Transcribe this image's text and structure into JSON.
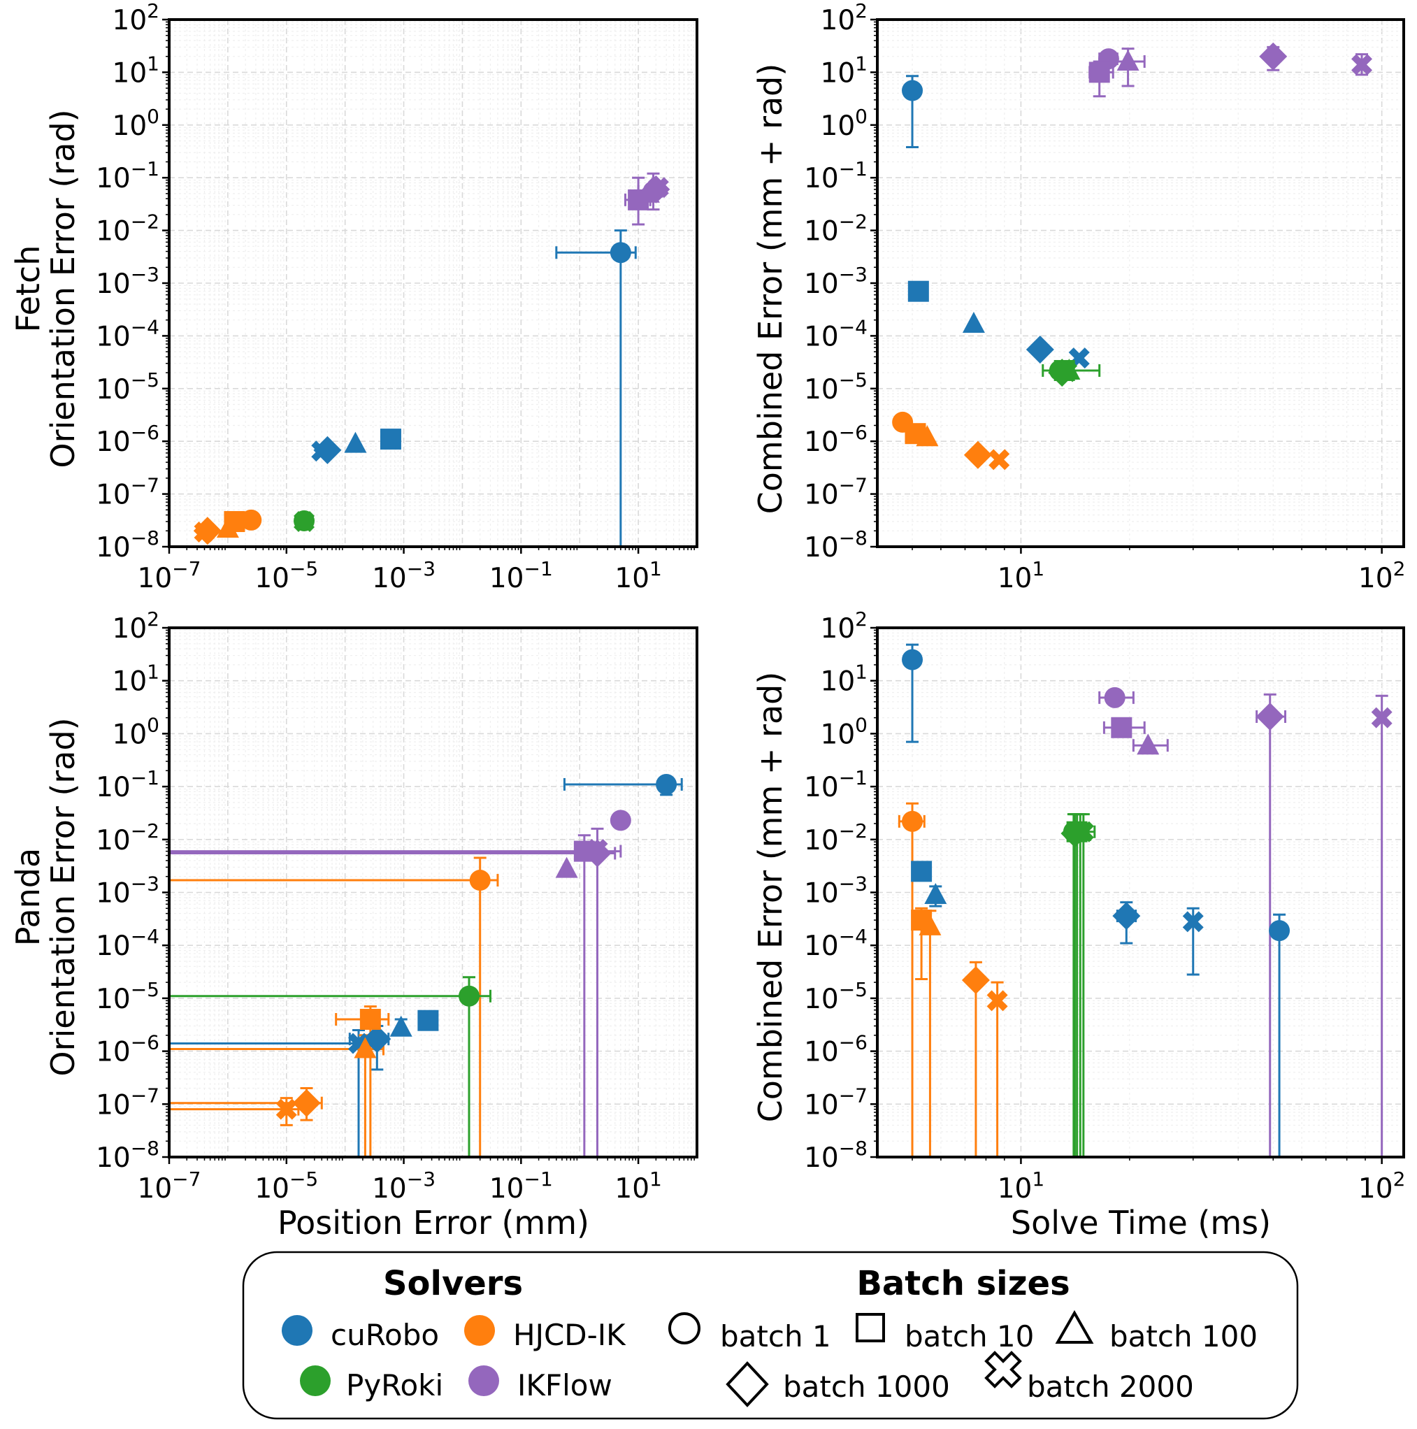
{
  "colors": {
    "cuRobo": "#1f77b4",
    "HJCD-IK": "#ff7f0e",
    "PyRoki": "#2ca02c",
    "IKFlow": "#9467bd"
  },
  "labels": {
    "fetch_ylabel_1": "Fetch",
    "fetch_ylabel_2": "Orientation Error (rad)",
    "panda_ylabel_1": "Panda",
    "panda_ylabel_2": "Orientation Error (rad)",
    "right_ylabel": "Combined Error (mm + rad)",
    "bottom_left_xlabel": "Position Error (mm)",
    "bottom_right_xlabel": "Solve Time (ms)"
  },
  "legend": {
    "solvers_title": "Solvers",
    "batch_title": "Batch sizes",
    "solvers": [
      {
        "name": "cuRobo",
        "color": "#1f77b4"
      },
      {
        "name": "HJCD-IK",
        "color": "#ff7f0e"
      },
      {
        "name": "PyRoki",
        "color": "#2ca02c"
      },
      {
        "name": "IKFlow",
        "color": "#9467bd"
      }
    ],
    "batches": [
      {
        "label": "batch 1",
        "marker": "circle"
      },
      {
        "label": "batch 10",
        "marker": "square"
      },
      {
        "label": "batch 100",
        "marker": "triangle"
      },
      {
        "label": "batch 1000",
        "marker": "diamond"
      },
      {
        "label": "batch 2000",
        "marker": "x"
      }
    ]
  },
  "chart_data": [
    {
      "type": "scatter",
      "id": "fetch-accuracy",
      "title": "",
      "xlabel": "",
      "ylabel": "Fetch Orientation Error (rad)",
      "xscale": "log",
      "yscale": "log",
      "xlim": [
        1e-07,
        100
      ],
      "ylim": [
        1e-08,
        100
      ],
      "xticks": [
        -7,
        -5,
        -3,
        -1,
        1
      ],
      "yticks": [
        -8,
        -7,
        -6,
        -5,
        -4,
        -3,
        -2,
        -1,
        0,
        1,
        2
      ],
      "points": [
        {
          "solver": "HJCD-IK",
          "batch": 1,
          "marker": "circle",
          "x": 2.5e-06,
          "y": 3.2e-08
        },
        {
          "solver": "HJCD-IK",
          "batch": 10,
          "marker": "square",
          "x": 1.3e-06,
          "y": 3e-08
        },
        {
          "solver": "HJCD-IK",
          "batch": 100,
          "marker": "triangle",
          "x": 1e-06,
          "y": 2.2e-08
        },
        {
          "solver": "HJCD-IK",
          "batch": 1000,
          "marker": "diamond",
          "x": 4.5e-07,
          "y": 2e-08
        },
        {
          "solver": "HJCD-IK",
          "batch": 2000,
          "marker": "x",
          "x": 4e-07,
          "y": 1.9e-08
        },
        {
          "solver": "PyRoki",
          "batch": 1,
          "marker": "circle",
          "x": 2e-05,
          "y": 3.1e-08
        },
        {
          "solver": "PyRoki",
          "batch": 2000,
          "marker": "x",
          "x": 2e-05,
          "y": 3e-08
        },
        {
          "solver": "cuRobo",
          "batch": 1,
          "marker": "circle",
          "x": 5.0,
          "y": 0.0038,
          "xerr": [
            0.4,
            9.0
          ],
          "yerr": [
            1e-09,
            0.01
          ]
        },
        {
          "solver": "cuRobo",
          "batch": 10,
          "marker": "square",
          "x": 0.0006,
          "y": 1.1e-06
        },
        {
          "solver": "cuRobo",
          "batch": 100,
          "marker": "triangle",
          "x": 0.00015,
          "y": 9e-07
        },
        {
          "solver": "cuRobo",
          "batch": 1000,
          "marker": "diamond",
          "x": 5e-05,
          "y": 6.8e-07
        },
        {
          "solver": "cuRobo",
          "batch": 2000,
          "marker": "x",
          "x": 4e-05,
          "y": 6.5e-07
        },
        {
          "solver": "IKFlow",
          "batch": 10,
          "marker": "square",
          "x": 10.0,
          "y": 0.038,
          "xerr": [
            6.0,
            16.0
          ],
          "yerr": [
            0.013,
            0.1
          ]
        },
        {
          "solver": "IKFlow",
          "batch": 100,
          "marker": "triangle",
          "x": 15.0,
          "y": 0.05
        },
        {
          "solver": "IKFlow",
          "batch": 1,
          "marker": "circle",
          "x": 18.0,
          "y": 0.055,
          "xerr": [
            10.0,
            25.0
          ],
          "yerr": [
            0.025,
            0.12
          ]
        },
        {
          "solver": "IKFlow",
          "batch": 1000,
          "marker": "diamond",
          "x": 20.0,
          "y": 0.06
        },
        {
          "solver": "IKFlow",
          "batch": 2000,
          "marker": "x",
          "x": 22.0,
          "y": 0.065
        }
      ]
    },
    {
      "type": "scatter",
      "id": "fetch-time",
      "title": "",
      "xlabel": "",
      "ylabel": "Combined Error (mm + rad)",
      "xscale": "log",
      "yscale": "log",
      "xlim": [
        4.0,
        115.0
      ],
      "ylim": [
        1e-08,
        100
      ],
      "xticks": [
        1,
        2
      ],
      "yticks": [
        -8,
        -7,
        -6,
        -5,
        -4,
        -3,
        -2,
        -1,
        0,
        1,
        2
      ],
      "points": [
        {
          "solver": "cuRobo",
          "batch": 1,
          "marker": "circle",
          "x": 5.0,
          "y": 4.5,
          "yerr": [
            0.38,
            8.5
          ]
        },
        {
          "solver": "cuRobo",
          "batch": 10,
          "marker": "square",
          "x": 5.2,
          "y": 0.0007
        },
        {
          "solver": "cuRobo",
          "batch": 100,
          "marker": "triangle",
          "x": 7.4,
          "y": 0.00017
        },
        {
          "solver": "cuRobo",
          "batch": 1000,
          "marker": "diamond",
          "x": 11.3,
          "y": 5.5e-05
        },
        {
          "solver": "cuRobo",
          "batch": 2000,
          "marker": "x",
          "x": 14.5,
          "y": 3.8e-05
        },
        {
          "solver": "PyRoki",
          "batch": 1,
          "marker": "circle",
          "x": 12.8,
          "y": 2.2e-05,
          "xerr": [
            11.5,
            16.5
          ]
        },
        {
          "solver": "PyRoki",
          "batch": 10,
          "marker": "square",
          "x": 13.2,
          "y": 2.2e-05
        },
        {
          "solver": "PyRoki",
          "batch": 100,
          "marker": "triangle",
          "x": 13.6,
          "y": 2.2e-05
        },
        {
          "solver": "PyRoki",
          "batch": 1000,
          "marker": "diamond",
          "x": 13.0,
          "y": 2e-05
        },
        {
          "solver": "PyRoki",
          "batch": 2000,
          "marker": "x",
          "x": 13.4,
          "y": 2.1e-05
        },
        {
          "solver": "HJCD-IK",
          "batch": 1,
          "marker": "circle",
          "x": 4.7,
          "y": 2.3e-06
        },
        {
          "solver": "HJCD-IK",
          "batch": 10,
          "marker": "square",
          "x": 5.1,
          "y": 1.4e-06
        },
        {
          "solver": "HJCD-IK",
          "batch": 100,
          "marker": "triangle",
          "x": 5.5,
          "y": 1.2e-06
        },
        {
          "solver": "HJCD-IK",
          "batch": 1000,
          "marker": "diamond",
          "x": 7.6,
          "y": 5.5e-07
        },
        {
          "solver": "HJCD-IK",
          "batch": 2000,
          "marker": "x",
          "x": 8.7,
          "y": 4.5e-07
        },
        {
          "solver": "IKFlow",
          "batch": 1,
          "marker": "circle",
          "x": 17.5,
          "y": 18.0,
          "xerr": [
            16.5,
            18.5
          ]
        },
        {
          "solver": "IKFlow",
          "batch": 10,
          "marker": "square",
          "x": 16.5,
          "y": 10.0,
          "xerr": [
            15.5,
            18.0
          ],
          "yerr": [
            3.5,
            16.0
          ]
        },
        {
          "solver": "IKFlow",
          "batch": 100,
          "marker": "triangle",
          "x": 19.8,
          "y": 16.0,
          "xerr": [
            18.0,
            22.0
          ],
          "yerr": [
            5.5,
            28.0
          ]
        },
        {
          "solver": "IKFlow",
          "batch": 1000,
          "marker": "diamond",
          "x": 50.0,
          "y": 20.0,
          "yerr": [
            11.0,
            30.0
          ]
        },
        {
          "solver": "IKFlow",
          "batch": 2000,
          "marker": "x",
          "x": 88.0,
          "y": 14.0,
          "yerr": [
            9.0,
            22.0
          ]
        }
      ]
    },
    {
      "type": "scatter",
      "id": "panda-accuracy",
      "title": "",
      "xlabel": "Position Error (mm)",
      "ylabel": "Panda Orientation Error (rad)",
      "xscale": "log",
      "yscale": "log",
      "xlim": [
        1e-07,
        100
      ],
      "ylim": [
        1e-08,
        100
      ],
      "xticks": [
        -7,
        -5,
        -3,
        -1,
        1
      ],
      "yticks": [
        -8,
        -7,
        -6,
        -5,
        -4,
        -3,
        -2,
        -1,
        0,
        1,
        2
      ],
      "points": [
        {
          "solver": "cuRobo",
          "batch": 1,
          "marker": "circle",
          "x": 30.0,
          "y": 0.11,
          "xerr": [
            0.55,
            55.0
          ],
          "yerr": [
            0.07,
            0.15
          ]
        },
        {
          "solver": "cuRobo",
          "batch": 10,
          "marker": "square",
          "x": 0.0026,
          "y": 3.8e-06
        },
        {
          "solver": "cuRobo",
          "batch": 100,
          "marker": "triangle",
          "x": 0.0009,
          "y": 2.8e-06,
          "yerr": [
            2e-06,
            4e-06
          ]
        },
        {
          "solver": "cuRobo",
          "batch": 1000,
          "marker": "diamond",
          "x": 0.00035,
          "y": 1.7e-06,
          "xerr": [
            0.00012,
            0.00055
          ],
          "yerr": [
            4.5e-07,
            3e-06
          ]
        },
        {
          "solver": "cuRobo",
          "batch": 2000,
          "marker": "x",
          "x": 0.00017,
          "y": 1.4e-06,
          "xerr": [
            1e-07,
            0.0003
          ],
          "yerr": [
            1e-09,
            2.5e-06
          ]
        },
        {
          "solver": "HJCD-IK",
          "batch": 1,
          "marker": "circle",
          "x": 0.02,
          "y": 0.0017,
          "xerr": [
            1e-07,
            0.04
          ],
          "yerr": [
            1e-09,
            0.0045
          ]
        },
        {
          "solver": "HJCD-IK",
          "batch": 10,
          "marker": "square",
          "x": 0.00027,
          "y": 4e-06,
          "xerr": [
            7e-05,
            0.00055
          ],
          "yerr": [
            1e-09,
            7e-06
          ]
        },
        {
          "solver": "HJCD-IK",
          "batch": 100,
          "marker": "triangle",
          "x": 0.00022,
          "y": 1.1e-06,
          "xerr": [
            1e-07,
            0.00045
          ],
          "yerr": [
            1e-09,
            2e-06
          ]
        },
        {
          "solver": "HJCD-IK",
          "batch": 1000,
          "marker": "diamond",
          "x": 2.2e-05,
          "y": 1.05e-07,
          "xerr": [
            1e-07,
            4e-05
          ],
          "yerr": [
            5e-08,
            2e-07
          ]
        },
        {
          "solver": "HJCD-IK",
          "batch": 2000,
          "marker": "x",
          "x": 1e-05,
          "y": 8e-08,
          "xerr": [
            1e-07,
            1.6e-05
          ],
          "yerr": [
            4e-08,
            1.3e-07
          ]
        },
        {
          "solver": "PyRoki",
          "batch": 1,
          "marker": "circle",
          "x": 0.013,
          "y": 1.1e-05,
          "xerr": [
            1e-07,
            0.03
          ],
          "yerr": [
            1e-09,
            2.5e-05
          ]
        },
        {
          "solver": "IKFlow",
          "batch": 1,
          "marker": "circle",
          "x": 5.0,
          "y": 0.023
        },
        {
          "solver": "IKFlow",
          "batch": 10,
          "marker": "square",
          "x": 1.2,
          "y": 0.006,
          "xerr": [
            1e-07,
            5.0
          ],
          "yerr": [
            1e-09,
            0.012
          ]
        },
        {
          "solver": "IKFlow",
          "batch": 100,
          "marker": "triangle",
          "x": 0.6,
          "y": 0.0028
        },
        {
          "solver": "IKFlow",
          "batch": 1000,
          "marker": "diamond",
          "x": 2.0,
          "y": 0.0055,
          "xerr": [
            1e-07,
            4.0
          ],
          "yerr": [
            1e-09,
            0.016
          ]
        },
        {
          "solver": "IKFlow",
          "batch": 2000,
          "marker": "x",
          "x": 2.0,
          "y": 0.0065
        }
      ]
    },
    {
      "type": "scatter",
      "id": "panda-time",
      "title": "",
      "xlabel": "Solve Time (ms)",
      "ylabel": "Combined Error (mm + rad)",
      "xscale": "log",
      "yscale": "log",
      "xlim": [
        4.0,
        115.0
      ],
      "ylim": [
        1e-08,
        100
      ],
      "xticks": [
        1,
        2
      ],
      "yticks": [
        -8,
        -7,
        -6,
        -5,
        -4,
        -3,
        -2,
        -1,
        0,
        1,
        2
      ],
      "points": [
        {
          "solver": "cuRobo",
          "batch": 1,
          "marker": "circle",
          "x": 5.0,
          "y": 25.0,
          "yerr": [
            0.7,
            48.0
          ]
        },
        {
          "solver": "cuRobo",
          "batch": 10,
          "marker": "square",
          "x": 5.3,
          "y": 0.0025
        },
        {
          "solver": "cuRobo",
          "batch": 100,
          "marker": "triangle",
          "x": 5.8,
          "y": 0.0009,
          "yerr": [
            0.00055,
            0.0013
          ]
        },
        {
          "solver": "cuRobo",
          "batch": 1000,
          "marker": "diamond",
          "x": 19.6,
          "y": 0.00036,
          "xerr": [
            18.5,
            20.8
          ],
          "yerr": [
            0.00011,
            0.00065
          ]
        },
        {
          "solver": "cuRobo",
          "batch": 2000,
          "marker": "x",
          "x": 30.0,
          "y": 0.00028,
          "yerr": [
            2.8e-05,
            0.0005
          ]
        },
        {
          "solver": "cuRobo",
          "batch": 1,
          "marker": "circle",
          "x": 52.0,
          "y": 0.00019,
          "yerr": [
            1e-09,
            0.00038
          ]
        },
        {
          "solver": "HJCD-IK",
          "batch": 1,
          "marker": "circle",
          "x": 5.0,
          "y": 0.022,
          "xerr": [
            4.6,
            5.4
          ],
          "yerr": [
            1e-09,
            0.048
          ]
        },
        {
          "solver": "HJCD-IK",
          "batch": 10,
          "marker": "square",
          "x": 5.3,
          "y": 0.0003,
          "yerr": [
            2.3e-05,
            0.0005
          ]
        },
        {
          "solver": "HJCD-IK",
          "batch": 100,
          "marker": "triangle",
          "x": 5.6,
          "y": 0.00023,
          "yerr": [
            1e-09,
            0.00045
          ]
        },
        {
          "solver": "HJCD-IK",
          "batch": 1000,
          "marker": "diamond",
          "x": 7.5,
          "y": 2.2e-05,
          "yerr": [
            1e-09,
            4.8e-05
          ]
        },
        {
          "solver": "HJCD-IK",
          "batch": 2000,
          "marker": "x",
          "x": 8.6,
          "y": 9e-06,
          "yerr": [
            1e-09,
            2e-05
          ]
        },
        {
          "solver": "PyRoki",
          "batch": 1,
          "marker": "circle",
          "x": 14.0,
          "y": 0.014,
          "xerr": [
            13.5,
            16.0
          ],
          "yerr": [
            1e-09,
            0.03
          ]
        },
        {
          "solver": "PyRoki",
          "batch": 10,
          "marker": "square",
          "x": 14.3,
          "y": 0.014,
          "yerr": [
            1e-09,
            0.03
          ]
        },
        {
          "solver": "PyRoki",
          "batch": 100,
          "marker": "triangle",
          "x": 14.6,
          "y": 0.014,
          "yerr": [
            1e-09,
            0.03
          ]
        },
        {
          "solver": "PyRoki",
          "batch": 1000,
          "marker": "diamond",
          "x": 14.1,
          "y": 0.013,
          "yerr": [
            1e-09,
            0.03
          ]
        },
        {
          "solver": "PyRoki",
          "batch": 2000,
          "marker": "x",
          "x": 14.9,
          "y": 0.014,
          "yerr": [
            1e-09,
            0.03
          ]
        },
        {
          "solver": "IKFlow",
          "batch": 1,
          "marker": "circle",
          "x": 18.2,
          "y": 4.8,
          "xerr": [
            16.5,
            20.5
          ]
        },
        {
          "solver": "IKFlow",
          "batch": 10,
          "marker": "square",
          "x": 19.0,
          "y": 1.3,
          "xerr": [
            17.0,
            22.0
          ]
        },
        {
          "solver": "IKFlow",
          "batch": 100,
          "marker": "triangle",
          "x": 22.5,
          "y": 0.6,
          "xerr": [
            20.5,
            25.5
          ]
        },
        {
          "solver": "IKFlow",
          "batch": 1000,
          "marker": "diamond",
          "x": 49.0,
          "y": 2.1,
          "xerr": [
            45.0,
            54.0
          ],
          "yerr": [
            1e-09,
            5.5
          ]
        },
        {
          "solver": "IKFlow",
          "batch": 2000,
          "marker": "x",
          "x": 100.0,
          "y": 2.0,
          "yerr": [
            1e-09,
            5.2
          ]
        }
      ]
    }
  ]
}
